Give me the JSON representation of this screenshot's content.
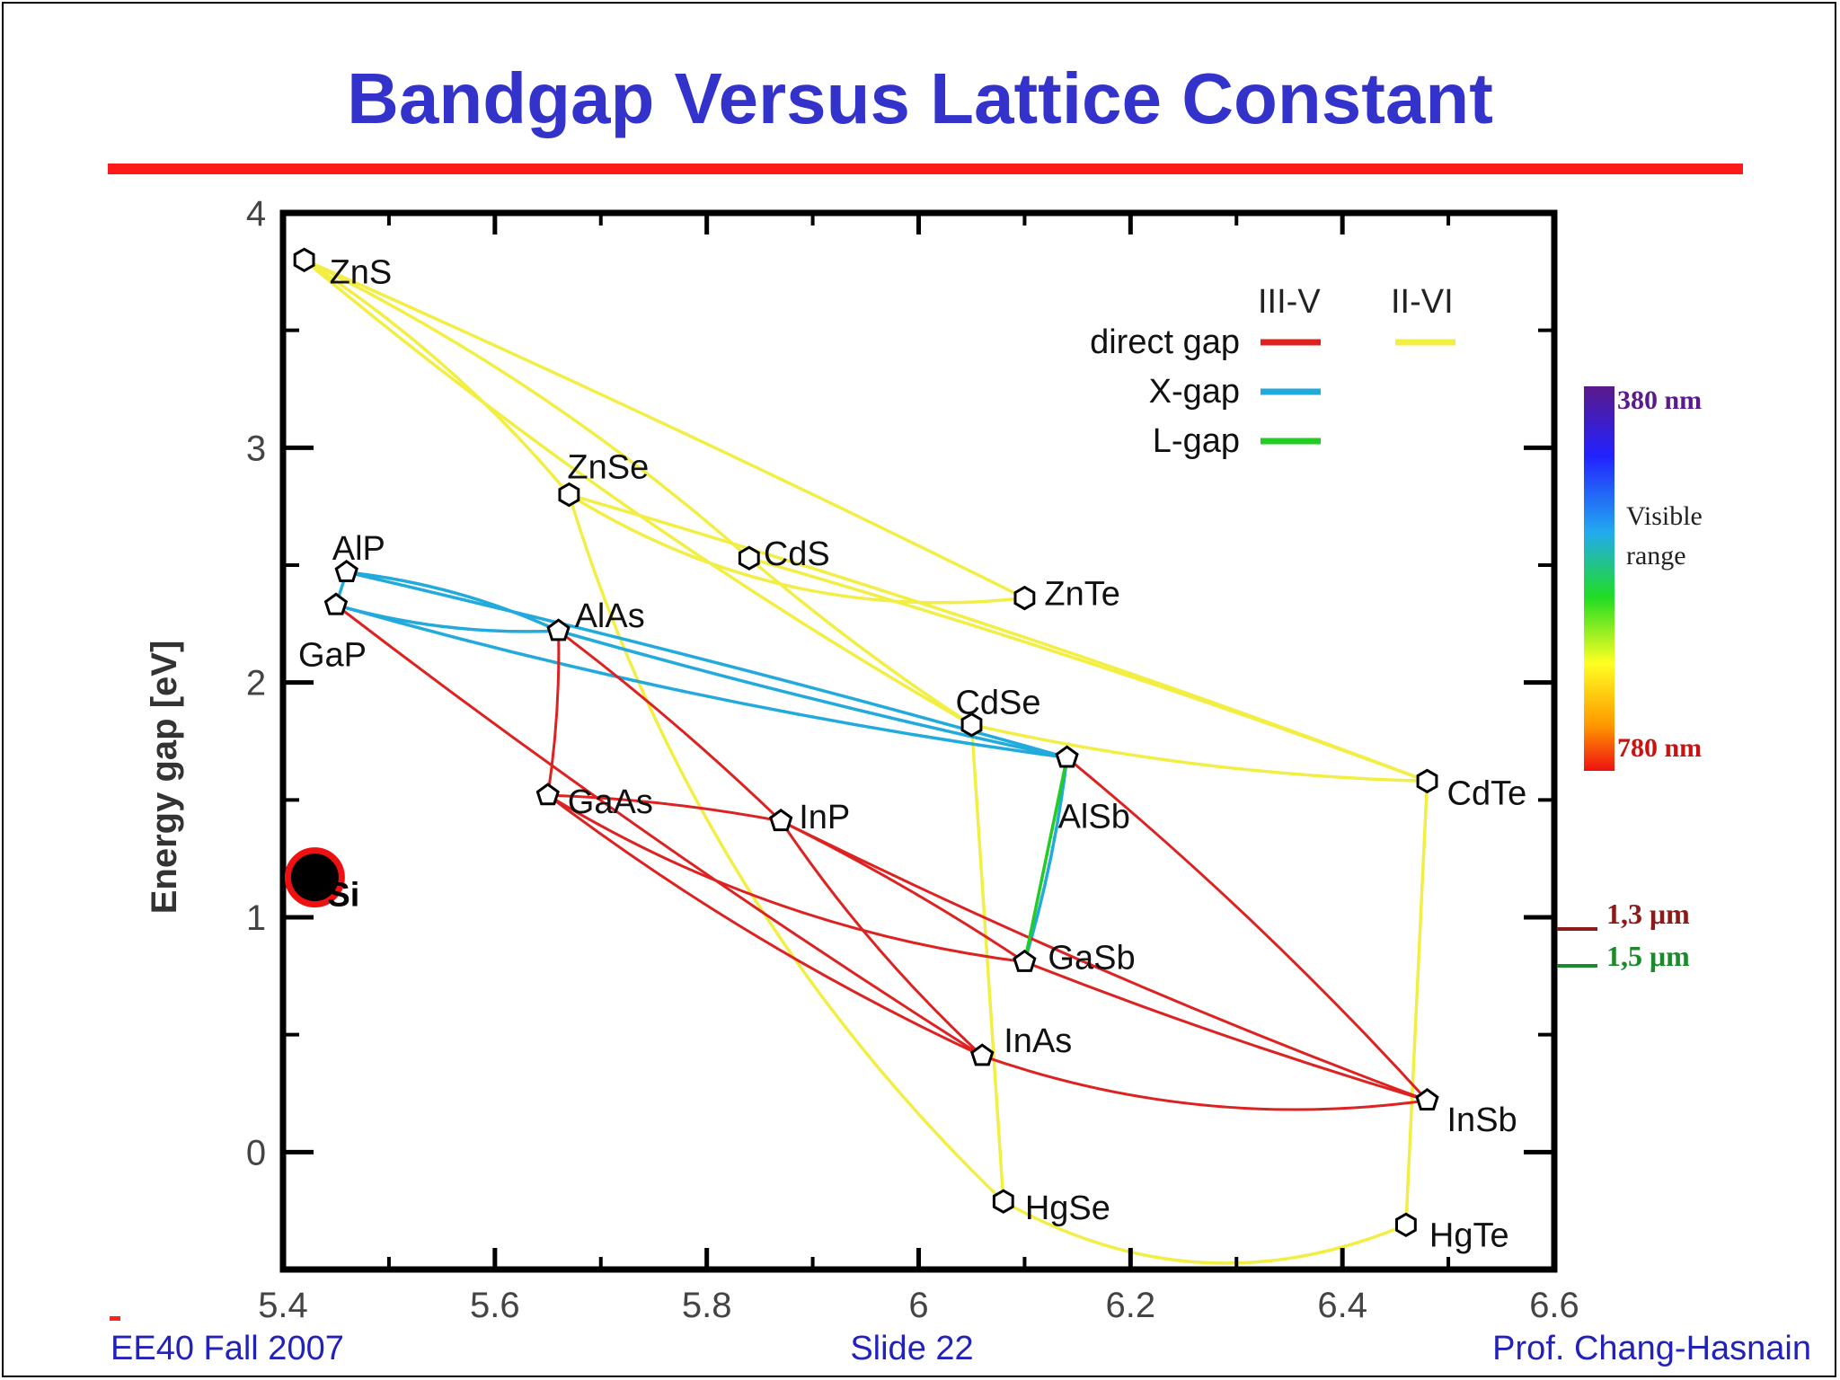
{
  "slide": {
    "title": "Bandgap Versus Lattice Constant",
    "footer_left": "EE40 Fall 2007",
    "footer_center": "Slide 22",
    "footer_right": "Prof. Chang-Hasnain"
  },
  "colors": {
    "title": "#3333cc",
    "rule": "#ff1a1a",
    "direct_iii_v": "#dd2222",
    "direct_ii_vi": "#f2ee44",
    "x_gap": "#22aadd",
    "l_gap": "#22cc22",
    "si_fill": "#000000",
    "si_ring": "#ee1111"
  },
  "chart_data": {
    "type": "scatter",
    "title": "",
    "xlabel": "",
    "ylabel": "Energy gap [eV]",
    "xlim": [
      5.4,
      6.6
    ],
    "ylim": [
      -0.5,
      4
    ],
    "x_ticks": [
      "5.4",
      "5.6",
      "5.8",
      "6",
      "6.2",
      "6.4",
      "6.6"
    ],
    "x_tick_values": [
      5.4,
      5.6,
      5.8,
      6.0,
      6.2,
      6.4,
      6.6
    ],
    "y_ticks": [
      "0",
      "1",
      "2",
      "3",
      "4"
    ],
    "y_tick_values": [
      0,
      1,
      2,
      3,
      4
    ],
    "legend": {
      "placement": "top-right",
      "col_headers": [
        "III-V",
        "II-VI"
      ],
      "rows": [
        {
          "label": "direct gap",
          "iii_v_color": "#dd2222",
          "ii_vi_color": "#f2ee44"
        },
        {
          "label": "X-gap",
          "iii_v_color": "#22aadd"
        },
        {
          "label": "L-gap",
          "iii_v_color": "#22cc22"
        }
      ]
    },
    "compounds": [
      {
        "name": "ZnS",
        "x": 5.42,
        "y": 3.8,
        "group": "II-VI"
      },
      {
        "name": "ZnSe",
        "x": 5.67,
        "y": 2.8,
        "group": "II-VI"
      },
      {
        "name": "CdS",
        "x": 5.84,
        "y": 2.53,
        "group": "II-VI"
      },
      {
        "name": "ZnTe",
        "x": 6.1,
        "y": 2.36,
        "group": "II-VI"
      },
      {
        "name": "CdSe",
        "x": 6.05,
        "y": 1.82,
        "group": "II-VI"
      },
      {
        "name": "CdTe",
        "x": 6.48,
        "y": 1.58,
        "group": "II-VI"
      },
      {
        "name": "HgSe",
        "x": 6.08,
        "y": -0.21,
        "group": "II-VI"
      },
      {
        "name": "HgTe",
        "x": 6.46,
        "y": -0.31,
        "group": "II-VI"
      },
      {
        "name": "AlP",
        "x": 5.46,
        "y": 2.47,
        "group": "III-V"
      },
      {
        "name": "GaP",
        "x": 5.45,
        "y": 2.33,
        "group": "III-V"
      },
      {
        "name": "AlAs",
        "x": 5.66,
        "y": 2.22,
        "group": "III-V"
      },
      {
        "name": "GaAs",
        "x": 5.65,
        "y": 1.52,
        "group": "III-V"
      },
      {
        "name": "InP",
        "x": 5.87,
        "y": 1.41,
        "group": "III-V"
      },
      {
        "name": "AlSb",
        "x": 6.14,
        "y": 1.68,
        "group": "III-V"
      },
      {
        "name": "GaSb",
        "x": 6.1,
        "y": 0.81,
        "group": "III-V"
      },
      {
        "name": "InAs",
        "x": 6.06,
        "y": 0.41,
        "group": "III-V"
      },
      {
        "name": "InSb",
        "x": 6.48,
        "y": 0.22,
        "group": "III-V"
      }
    ],
    "highlight": {
      "name": "Si",
      "x": 5.43,
      "y": 1.17
    },
    "colorbar": {
      "top_label": "380 nm",
      "middle_label": [
        "Visible",
        "range"
      ],
      "bottom_label": "780 nm"
    },
    "wavelength_markers": [
      {
        "label": "1,3 μm",
        "y": 0.95,
        "color": "#8b1a1a"
      },
      {
        "label": "1,5 μm",
        "y": 0.82,
        "color": "#1a8b2a"
      }
    ]
  }
}
